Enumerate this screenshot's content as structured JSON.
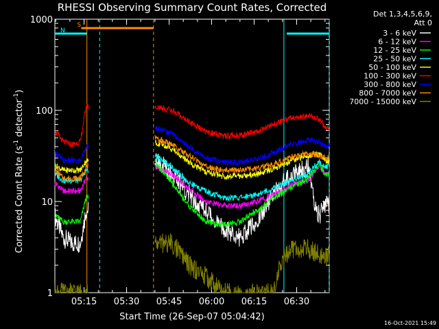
{
  "chart_data": {
    "type": "line",
    "title": "RHESSI Observing Summary Count Rates, Corrected",
    "xlabel": "Start Time (26-Sep-07 05:04:42)",
    "ylabel_main": "Corrected Count Rate (s",
    "ylabel_sup1": "-1",
    "ylabel_mid": " detector",
    "ylabel_sup2": "-1",
    "ylabel_end": ")",
    "yscale": "log",
    "ylim": [
      1,
      1000
    ],
    "xlim": [
      "05:04:42",
      "06:41:30"
    ],
    "x_ticks": [
      "05:15",
      "05:30",
      "05:45",
      "06:00",
      "06:15",
      "06:30"
    ],
    "y_ticks": [
      "1",
      "10",
      "100",
      "1000"
    ],
    "legend_header": [
      "Det 1,3,4,5,6,9,",
      "Att 0"
    ],
    "timestamp": "16-Oct-2021 15:49",
    "legend_placement": "right",
    "flags": [
      {
        "label": "S",
        "color": "#ff8c00",
        "start": "05:14:00",
        "end": "05:39:30"
      },
      {
        "label": "N",
        "color": "#00ffff",
        "start": "05:04:42",
        "end": "05:16:00"
      },
      {
        "label": "",
        "color": "#00ffff",
        "start": "06:26:30",
        "end": "06:41:30"
      }
    ],
    "markers": [
      {
        "time": "05:16:00",
        "color": "#ff8c00",
        "style": "solid"
      },
      {
        "time": "05:20:30",
        "color": "#00ffff",
        "style": "dashed"
      },
      {
        "time": "05:39:30",
        "color": "#ff8c00",
        "style": "dashed"
      },
      {
        "time": "06:25:30",
        "color": "#00ffff",
        "style": "solid"
      },
      {
        "time": "06:41:30",
        "color": "#00ffff",
        "style": "dashed"
      }
    ],
    "data_gap": [
      "05:16:30",
      "05:40:00"
    ],
    "series": [
      {
        "name": "3 - 6 keV",
        "color": "#ffffff",
        "seg1": [
          [
            0,
            7
          ],
          [
            3,
            4
          ],
          [
            6,
            3.5
          ],
          [
            9,
            3.5
          ],
          [
            11,
            8
          ]
        ],
        "seg2": [
          [
            0,
            30
          ],
          [
            6,
            20
          ],
          [
            12,
            12
          ],
          [
            18,
            8
          ],
          [
            24,
            5
          ],
          [
            30,
            4
          ],
          [
            36,
            6
          ],
          [
            42,
            12
          ],
          [
            48,
            20
          ],
          [
            54,
            25
          ],
          [
            56,
            10
          ],
          [
            58,
            7
          ],
          [
            60,
            9
          ]
        ]
      },
      {
        "name": "6 - 12 keV",
        "color": "#ff00ff",
        "seg1": [
          [
            0,
            16
          ],
          [
            3,
            13
          ],
          [
            6,
            13
          ],
          [
            9,
            13
          ],
          [
            11,
            18
          ]
        ],
        "seg2": [
          [
            0,
            24
          ],
          [
            6,
            20
          ],
          [
            12,
            14
          ],
          [
            18,
            10
          ],
          [
            24,
            9
          ],
          [
            30,
            9
          ],
          [
            36,
            10
          ],
          [
            42,
            12
          ],
          [
            48,
            15
          ],
          [
            54,
            17
          ],
          [
            58,
            25
          ],
          [
            60,
            20
          ]
        ]
      },
      {
        "name": "12 - 25 keV",
        "color": "#00ff00",
        "seg1": [
          [
            0,
            7
          ],
          [
            3,
            6
          ],
          [
            6,
            6
          ],
          [
            9,
            6
          ],
          [
            11,
            11
          ]
        ],
        "seg2": [
          [
            0,
            28
          ],
          [
            6,
            16
          ],
          [
            12,
            9
          ],
          [
            18,
            6
          ],
          [
            24,
            5.5
          ],
          [
            30,
            6
          ],
          [
            36,
            8
          ],
          [
            42,
            11
          ],
          [
            48,
            14
          ],
          [
            54,
            18
          ],
          [
            58,
            26
          ],
          [
            60,
            20
          ]
        ]
      },
      {
        "name": "25 - 50 keV",
        "color": "#00ffff",
        "seg1": [
          [
            0,
            20
          ],
          [
            3,
            17
          ],
          [
            6,
            17
          ],
          [
            9,
            17
          ],
          [
            11,
            22
          ]
        ],
        "seg2": [
          [
            0,
            32
          ],
          [
            6,
            24
          ],
          [
            12,
            16
          ],
          [
            18,
            13
          ],
          [
            24,
            11
          ],
          [
            30,
            11
          ],
          [
            36,
            12
          ],
          [
            42,
            14
          ],
          [
            48,
            17
          ],
          [
            54,
            20
          ],
          [
            58,
            28
          ],
          [
            60,
            24
          ]
        ]
      },
      {
        "name": "50 - 100 keV",
        "color": "#ffff00",
        "seg1": [
          [
            0,
            25
          ],
          [
            3,
            22
          ],
          [
            6,
            22
          ],
          [
            9,
            22
          ],
          [
            11,
            28
          ]
        ],
        "seg2": [
          [
            0,
            45
          ],
          [
            6,
            38
          ],
          [
            12,
            27
          ],
          [
            18,
            21
          ],
          [
            24,
            19
          ],
          [
            30,
            19
          ],
          [
            36,
            20
          ],
          [
            42,
            23
          ],
          [
            48,
            28
          ],
          [
            54,
            32
          ],
          [
            58,
            33
          ],
          [
            60,
            28
          ]
        ]
      },
      {
        "name": "100 - 300 keV",
        "color": "#ff0000",
        "seg1": [
          [
            0,
            60
          ],
          [
            3,
            45
          ],
          [
            6,
            42
          ],
          [
            9,
            45
          ],
          [
            11,
            110
          ]
        ],
        "seg2": [
          [
            0,
            110
          ],
          [
            6,
            100
          ],
          [
            12,
            75
          ],
          [
            18,
            58
          ],
          [
            24,
            53
          ],
          [
            30,
            53
          ],
          [
            36,
            58
          ],
          [
            42,
            70
          ],
          [
            48,
            83
          ],
          [
            54,
            88
          ],
          [
            58,
            80
          ],
          [
            60,
            65
          ]
        ]
      },
      {
        "name": "300 - 800 keV",
        "color": "#0000ff",
        "seg1": [
          [
            0,
            35
          ],
          [
            3,
            28
          ],
          [
            6,
            28
          ],
          [
            9,
            28
          ],
          [
            11,
            40
          ]
        ],
        "seg2": [
          [
            0,
            65
          ],
          [
            6,
            55
          ],
          [
            12,
            40
          ],
          [
            18,
            30
          ],
          [
            24,
            27
          ],
          [
            30,
            27
          ],
          [
            36,
            29
          ],
          [
            42,
            35
          ],
          [
            48,
            42
          ],
          [
            54,
            47
          ],
          [
            58,
            45
          ],
          [
            60,
            40
          ]
        ]
      },
      {
        "name": "800 - 7000 keV",
        "color": "#ff8c00",
        "seg1": [
          [
            0,
            22
          ],
          [
            3,
            18
          ],
          [
            6,
            18
          ],
          [
            9,
            18
          ],
          [
            11,
            24
          ]
        ],
        "seg2": [
          [
            0,
            50
          ],
          [
            6,
            42
          ],
          [
            12,
            32
          ],
          [
            18,
            24
          ],
          [
            24,
            22
          ],
          [
            30,
            22
          ],
          [
            36,
            23
          ],
          [
            42,
            26
          ],
          [
            48,
            30
          ],
          [
            54,
            34
          ],
          [
            58,
            32
          ],
          [
            60,
            30
          ]
        ]
      },
      {
        "name": "7000 - 15000 keV",
        "color": "#808000",
        "seg1": [
          [
            0,
            1
          ],
          [
            11,
            1
          ]
        ],
        "seg2": [
          [
            0,
            3.5
          ],
          [
            6,
            3.5
          ],
          [
            10,
            2.5
          ],
          [
            12,
            2
          ],
          [
            18,
            1.5
          ],
          [
            24,
            1
          ],
          [
            30,
            1
          ],
          [
            36,
            1
          ],
          [
            42,
            1
          ],
          [
            44,
            2
          ],
          [
            48,
            3
          ],
          [
            54,
            3
          ],
          [
            60,
            2.5
          ]
        ]
      }
    ]
  }
}
